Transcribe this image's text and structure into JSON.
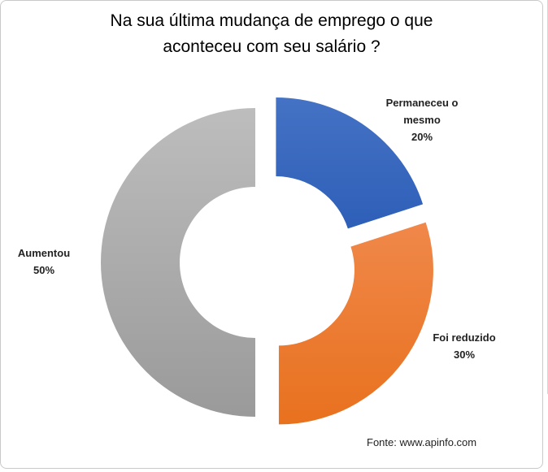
{
  "chart_data": {
    "type": "pie",
    "variant": "exploded-donut",
    "title_lines": [
      "Na sua última mudança de emprego o que",
      "aconteceu com seu salário ?"
    ],
    "slices": [
      {
        "label_lines": [
          "Permaneceu o",
          "mesmo"
        ],
        "percent_label": "20%",
        "value": 20,
        "color": "#4472C4",
        "color_dark": "#2E5FB8"
      },
      {
        "label_lines": [
          "Foi reduzido"
        ],
        "percent_label": "30%",
        "value": 30,
        "color": "#F0884A",
        "color_dark": "#E8711E"
      },
      {
        "label_lines": [
          "Aumentou"
        ],
        "percent_label": "50%",
        "value": 50,
        "color": "#BDBDBD",
        "color_dark": "#9A9A9A"
      }
    ]
  },
  "source": "Fonte: www.apinfo.com"
}
